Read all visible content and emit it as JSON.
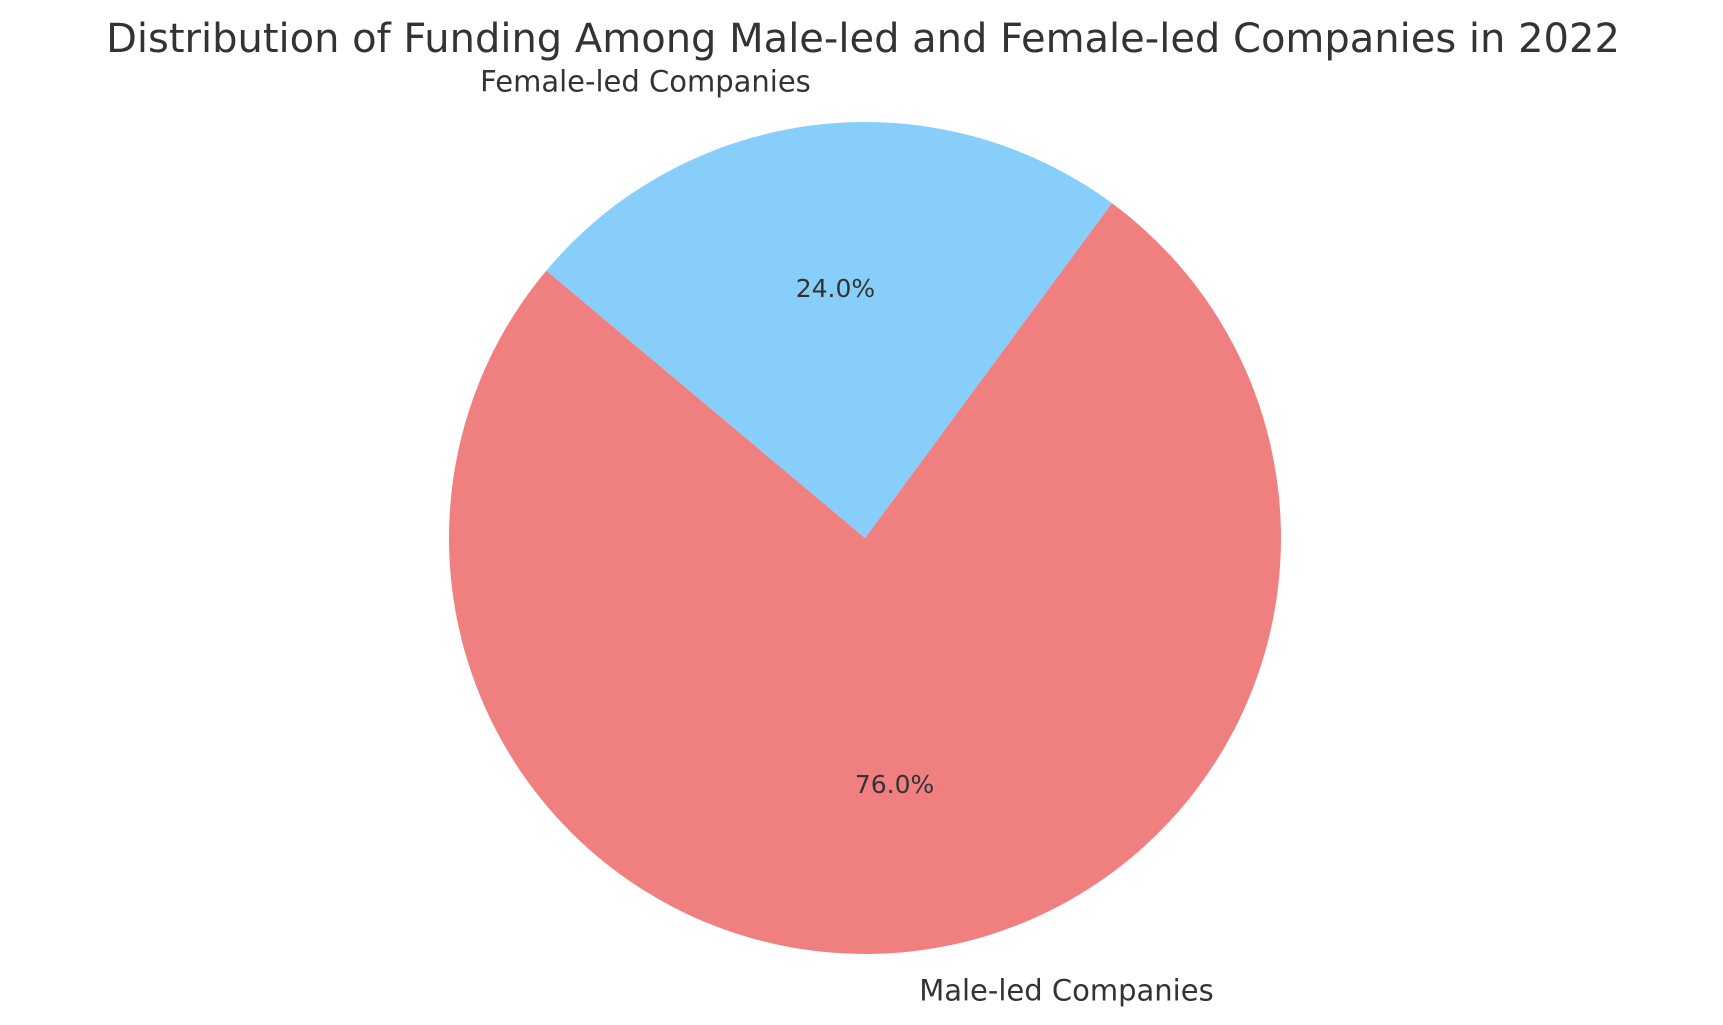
{
  "chart_data": {
    "type": "pie",
    "title": "Distribution of Funding Among Male-led and Female-led Companies in 2022",
    "slices": [
      {
        "label": "Male-led Companies",
        "value": 76.0,
        "pct_label": "76.0%",
        "color": "#F08080"
      },
      {
        "label": "Female-led Companies",
        "value": 24.0,
        "pct_label": "24.0%",
        "color": "#87CEFA"
      }
    ],
    "start_angle_deg": 140,
    "direction": "counterclockwise"
  }
}
